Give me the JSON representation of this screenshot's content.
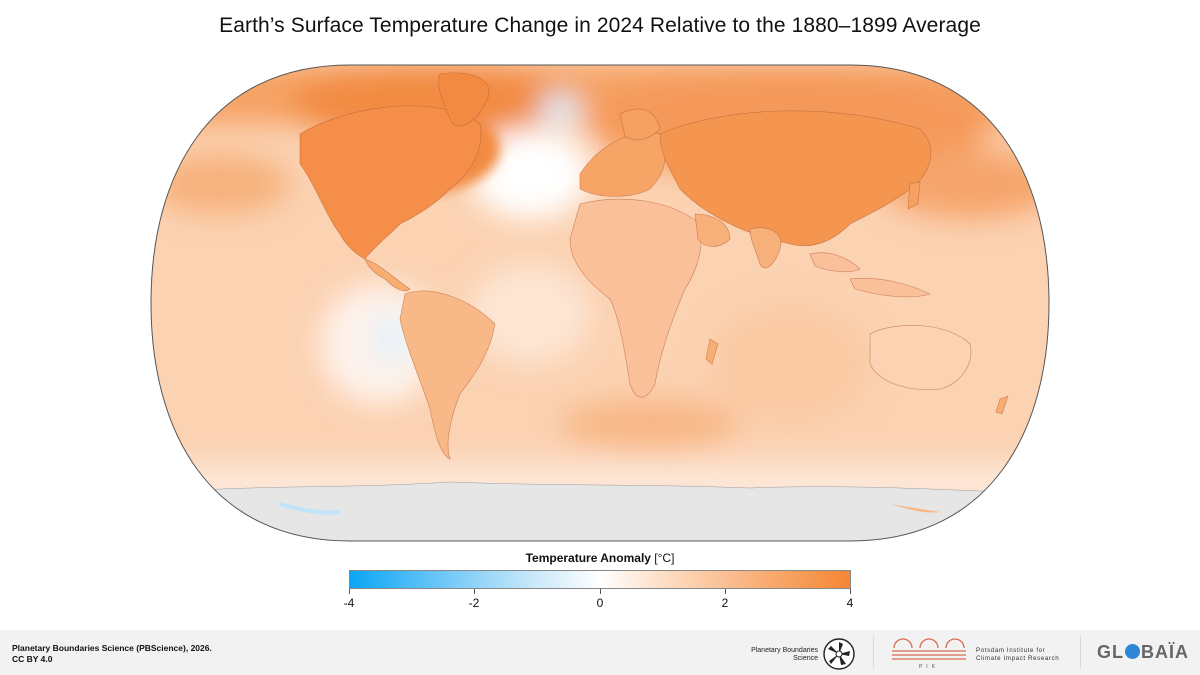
{
  "title": "Earth’s Surface Temperature Change in 2024 Relative to the 1880–1899 Average",
  "legend": {
    "title_bold": "Temperature Anomaly",
    "title_unit": " [°C]",
    "min": -4,
    "max": 4,
    "ticks": [
      "-4",
      "-2",
      "0",
      "2",
      "4"
    ],
    "colors": {
      "cold": "#0aa6f5",
      "neutral": "#ffffff",
      "warm": "#f58634",
      "no_data": "#e6e6e6"
    }
  },
  "map": {
    "projection": "Equal Earth",
    "dominant_anomaly": "warm",
    "cool_regions": [
      "subpolar North Atlantic",
      "eastern tropical South Pacific",
      "Southern Ocean near Antarctica"
    ],
    "strongest_warming": [
      "Canada",
      "Greenland",
      "Northern Eurasia",
      "Arctic"
    ]
  },
  "footer": {
    "credit_line1": "Planetary Boundaries Science (PBScience), 2026.",
    "credit_line2": "CC BY 4.0",
    "pb_logo_text_1": "Planetary Boundaries",
    "pb_logo_text_2": "Science",
    "pik_line1": "Potsdam Institute for",
    "pik_line2": "Climate Impact Research",
    "pik_abbr": "PIK",
    "globaia_pre": "GL",
    "globaia_post": "BAÏA"
  }
}
